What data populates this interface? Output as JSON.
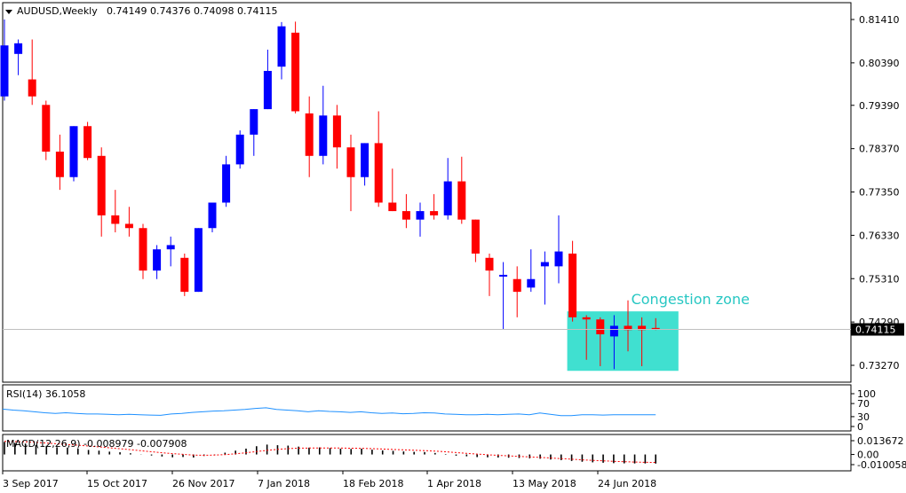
{
  "header": {
    "symbol": "AUDUSD,Weekly",
    "ohlc": "0.74149 0.74376 0.74098 0.74115"
  },
  "price_axis": {
    "ticks": [
      "0.81410",
      "0.80390",
      "0.79390",
      "0.78370",
      "0.77350",
      "0.76330",
      "0.75310",
      "0.74290",
      "0.73270"
    ],
    "current": "0.74115"
  },
  "time_axis": {
    "labels": [
      "3 Sep 2017",
      "15 Oct 2017",
      "26 Nov 2017",
      "7 Jan 2018",
      "18 Feb 2018",
      "1 Apr 2018",
      "13 May 2018",
      "24 Jun 2018"
    ]
  },
  "rsi": {
    "label": "RSI(14) 36.1058",
    "ticks": [
      "100",
      "70",
      "30",
      "0"
    ],
    "values": [
      53,
      50,
      48,
      45,
      42,
      40,
      42,
      40,
      38,
      38,
      37,
      36,
      37,
      36,
      35,
      34,
      38,
      40,
      43,
      45,
      47,
      48,
      50,
      52,
      55,
      57,
      52,
      50,
      48,
      45,
      48,
      46,
      45,
      43,
      45,
      42,
      40,
      41,
      39,
      40,
      42,
      41,
      38,
      37,
      36,
      36,
      37,
      36,
      37,
      38,
      36,
      41,
      37,
      33,
      33,
      36,
      36,
      35,
      36,
      36,
      36,
      36,
      36
    ]
  },
  "macd": {
    "label": "MACD(12,26,9) -0.008979 -0.007908",
    "ticks": [
      "0.013672",
      "0.00",
      "-0.010058"
    ],
    "values": [
      0.0125,
      0.0115,
      0.0108,
      0.0095,
      0.0085,
      0.0072,
      0.0068,
      0.0058,
      0.0045,
      0.0038,
      0.0028,
      0.0022,
      0.0012,
      0.0002,
      -0.001,
      -0.002,
      -0.0028,
      -0.0025,
      -0.003,
      -0.0015,
      0.0002,
      0.0018,
      0.0038,
      0.0058,
      0.0082,
      0.0098,
      0.0092,
      0.0088,
      0.0078,
      0.0068,
      0.007,
      0.0064,
      0.0058,
      0.0055,
      0.0058,
      0.0048,
      0.004,
      0.0036,
      0.003,
      0.0026,
      0.0024,
      0.0015,
      0.0005,
      -0.0012,
      -0.0018,
      -0.0026,
      -0.0028,
      -0.003,
      -0.0032,
      -0.0035,
      -0.0038,
      -0.0042,
      -0.005,
      -0.0056,
      -0.0064,
      -0.0072,
      -0.0078,
      -0.0082,
      -0.0086,
      -0.0088,
      -0.0089,
      -0.0089,
      -0.009
    ],
    "signal": [
      0.013,
      0.0128,
      0.0125,
      0.012,
      0.0113,
      0.0106,
      0.0099,
      0.0092,
      0.0084,
      0.0075,
      0.0066,
      0.0057,
      0.0047,
      0.0037,
      0.0027,
      0.0017,
      0.0008,
      0.0001,
      -0.0006,
      -0.0008,
      -0.0006,
      -0.0001,
      0.0007,
      0.0017,
      0.0029,
      0.0041,
      0.0051,
      0.0058,
      0.0063,
      0.0064,
      0.0065,
      0.0065,
      0.0064,
      0.0062,
      0.0061,
      0.0058,
      0.0054,
      0.005,
      0.0046,
      0.0042,
      0.0038,
      0.0033,
      0.0027,
      0.0019,
      0.0011,
      0.0004,
      -0.0003,
      -0.0009,
      -0.0014,
      -0.0019,
      -0.0024,
      -0.0029,
      -0.0035,
      -0.0041,
      -0.0047,
      -0.0053,
      -0.0058,
      -0.0063,
      -0.0068,
      -0.0072,
      -0.0075,
      -0.0078,
      -0.0079
    ]
  },
  "annotation": {
    "text": "Congestion zone",
    "price_top": 0.7454,
    "price_bottom": 0.7314
  },
  "colors": {
    "bull": "#0000ff",
    "bear": "#ff0000",
    "zone": "#40e0d0",
    "rsi_line": "#1e90ff",
    "signal_line": "#ff0000"
  },
  "chart_data": {
    "type": "candlestick",
    "timeframe": "Weekly",
    "ylim": [
      0.729,
      0.817
    ],
    "candles": [
      {
        "o": 0.796,
        "h": 0.8141,
        "l": 0.795,
        "c": 0.808
      },
      {
        "o": 0.806,
        "h": 0.8094,
        "l": 0.801,
        "c": 0.8085
      },
      {
        "o": 0.8,
        "h": 0.8094,
        "l": 0.794,
        "c": 0.796
      },
      {
        "o": 0.794,
        "h": 0.795,
        "l": 0.781,
        "c": 0.783
      },
      {
        "o": 0.783,
        "h": 0.787,
        "l": 0.774,
        "c": 0.777
      },
      {
        "o": 0.777,
        "h": 0.789,
        "l": 0.776,
        "c": 0.789
      },
      {
        "o": 0.789,
        "h": 0.79,
        "l": 0.781,
        "c": 0.7815
      },
      {
        "o": 0.782,
        "h": 0.784,
        "l": 0.763,
        "c": 0.768
      },
      {
        "o": 0.768,
        "h": 0.774,
        "l": 0.764,
        "c": 0.766
      },
      {
        "o": 0.766,
        "h": 0.77,
        "l": 0.763,
        "c": 0.765
      },
      {
        "o": 0.765,
        "h": 0.766,
        "l": 0.753,
        "c": 0.755
      },
      {
        "o": 0.755,
        "h": 0.761,
        "l": 0.753,
        "c": 0.76
      },
      {
        "o": 0.76,
        "h": 0.763,
        "l": 0.756,
        "c": 0.761
      },
      {
        "o": 0.758,
        "h": 0.759,
        "l": 0.749,
        "c": 0.75
      },
      {
        "o": 0.75,
        "h": 0.765,
        "l": 0.75,
        "c": 0.765
      },
      {
        "o": 0.765,
        "h": 0.771,
        "l": 0.764,
        "c": 0.771
      },
      {
        "o": 0.771,
        "h": 0.782,
        "l": 0.77,
        "c": 0.78
      },
      {
        "o": 0.78,
        "h": 0.788,
        "l": 0.779,
        "c": 0.787
      },
      {
        "o": 0.787,
        "h": 0.793,
        "l": 0.782,
        "c": 0.793
      },
      {
        "o": 0.793,
        "h": 0.807,
        "l": 0.793,
        "c": 0.802
      },
      {
        "o": 0.803,
        "h": 0.8135,
        "l": 0.8,
        "c": 0.8125
      },
      {
        "o": 0.811,
        "h": 0.8136,
        "l": 0.792,
        "c": 0.7925
      },
      {
        "o": 0.792,
        "h": 0.796,
        "l": 0.777,
        "c": 0.782
      },
      {
        "o": 0.782,
        "h": 0.7985,
        "l": 0.78,
        "c": 0.7915
      },
      {
        "o": 0.7915,
        "h": 0.794,
        "l": 0.779,
        "c": 0.784
      },
      {
        "o": 0.784,
        "h": 0.787,
        "l": 0.769,
        "c": 0.777
      },
      {
        "o": 0.777,
        "h": 0.785,
        "l": 0.775,
        "c": 0.785
      },
      {
        "o": 0.785,
        "h": 0.7925,
        "l": 0.77,
        "c": 0.771
      },
      {
        "o": 0.771,
        "h": 0.779,
        "l": 0.769,
        "c": 0.769
      },
      {
        "o": 0.769,
        "h": 0.773,
        "l": 0.765,
        "c": 0.767
      },
      {
        "o": 0.767,
        "h": 0.771,
        "l": 0.763,
        "c": 0.769
      },
      {
        "o": 0.769,
        "h": 0.773,
        "l": 0.767,
        "c": 0.768
      },
      {
        "o": 0.768,
        "h": 0.7815,
        "l": 0.767,
        "c": 0.776
      },
      {
        "o": 0.776,
        "h": 0.7818,
        "l": 0.766,
        "c": 0.767
      },
      {
        "o": 0.767,
        "h": 0.767,
        "l": 0.757,
        "c": 0.759
      },
      {
        "o": 0.758,
        "h": 0.759,
        "l": 0.749,
        "c": 0.755
      },
      {
        "o": 0.754,
        "h": 0.757,
        "l": 0.7412,
        "c": 0.754
      },
      {
        "o": 0.753,
        "h": 0.756,
        "l": 0.744,
        "c": 0.75
      },
      {
        "o": 0.751,
        "h": 0.76,
        "l": 0.75,
        "c": 0.753
      },
      {
        "o": 0.756,
        "h": 0.7595,
        "l": 0.747,
        "c": 0.757
      },
      {
        "o": 0.756,
        "h": 0.768,
        "l": 0.752,
        "c": 0.7595
      },
      {
        "o": 0.759,
        "h": 0.762,
        "l": 0.743,
        "c": 0.744
      },
      {
        "o": 0.744,
        "h": 0.7445,
        "l": 0.734,
        "c": 0.7435
      },
      {
        "o": 0.7435,
        "h": 0.744,
        "l": 0.7325,
        "c": 0.74
      },
      {
        "o": 0.7395,
        "h": 0.7445,
        "l": 0.7318,
        "c": 0.742
      },
      {
        "o": 0.742,
        "h": 0.748,
        "l": 0.736,
        "c": 0.741
      },
      {
        "o": 0.742,
        "h": 0.744,
        "l": 0.7325,
        "c": 0.741
      },
      {
        "o": 0.7415,
        "h": 0.7438,
        "l": 0.741,
        "c": 0.7411
      }
    ]
  }
}
